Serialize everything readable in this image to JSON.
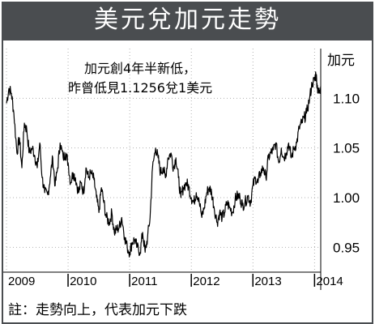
{
  "title": "美元兌加元走勢",
  "annotation_lines": [
    "加元創4年半新低，",
    "昨曾低見1.1256兌1美元"
  ],
  "footnote": "註：走勢向上，代表加元下跌",
  "chart_data": {
    "type": "line",
    "title": "美元兌加元走勢",
    "ylabel": "加元",
    "xlabel": "",
    "ylim": [
      0.925,
      1.15
    ],
    "xlim": [
      2009.0,
      2014.1
    ],
    "yticks": [
      0.95,
      1.0,
      1.05,
      1.1
    ],
    "ytick_labels": [
      "0.95",
      "1.00",
      "1.05",
      "1.10"
    ],
    "xticks": [
      {
        "x": 2009.0,
        "label": "2009"
      },
      {
        "x": 2010.0,
        "label": "2010"
      },
      {
        "x": 2011.0,
        "label": "2011"
      },
      {
        "x": 2012.0,
        "label": "2012"
      },
      {
        "x": 2013.0,
        "label": "2013"
      },
      {
        "x": 2014.0,
        "label": "2014"
      }
    ],
    "grid": true,
    "series": [
      {
        "name": "",
        "x": [
          2009.0,
          2009.04,
          2009.08,
          2009.12,
          2009.17,
          2009.21,
          2009.25,
          2009.29,
          2009.33,
          2009.37,
          2009.42,
          2009.46,
          2009.5,
          2009.54,
          2009.58,
          2009.62,
          2009.67,
          2009.71,
          2009.75,
          2009.79,
          2009.83,
          2009.87,
          2009.92,
          2009.96,
          2010.0,
          2010.04,
          2010.08,
          2010.12,
          2010.17,
          2010.21,
          2010.25,
          2010.29,
          2010.33,
          2010.37,
          2010.42,
          2010.46,
          2010.5,
          2010.54,
          2010.58,
          2010.62,
          2010.67,
          2010.71,
          2010.75,
          2010.79,
          2010.83,
          2010.87,
          2010.92,
          2010.96,
          2011.0,
          2011.04,
          2011.08,
          2011.12,
          2011.17,
          2011.21,
          2011.25,
          2011.29,
          2011.33,
          2011.37,
          2011.42,
          2011.46,
          2011.5,
          2011.54,
          2011.58,
          2011.62,
          2011.67,
          2011.71,
          2011.75,
          2011.79,
          2011.83,
          2011.87,
          2011.92,
          2011.96,
          2012.0,
          2012.04,
          2012.08,
          2012.12,
          2012.17,
          2012.21,
          2012.25,
          2012.29,
          2012.33,
          2012.37,
          2012.42,
          2012.46,
          2012.5,
          2012.54,
          2012.58,
          2012.62,
          2012.67,
          2012.71,
          2012.75,
          2012.79,
          2012.83,
          2012.87,
          2012.92,
          2012.96,
          2013.0,
          2013.04,
          2013.08,
          2013.12,
          2013.17,
          2013.21,
          2013.25,
          2013.29,
          2013.33,
          2013.37,
          2013.42,
          2013.46,
          2013.5,
          2013.54,
          2013.58,
          2013.62,
          2013.67,
          2013.71,
          2013.75,
          2013.79,
          2013.83,
          2013.87,
          2013.92,
          2013.96,
          2014.0,
          2014.02,
          2014.04,
          2014.06,
          2014.08,
          2014.1
        ],
        "values": [
          1.095,
          1.11,
          1.105,
          1.085,
          1.045,
          1.06,
          1.03,
          1.075,
          1.068,
          1.045,
          1.05,
          1.042,
          1.03,
          1.055,
          1.02,
          1.005,
          1.003,
          1.02,
          1.04,
          1.012,
          1.03,
          1.055,
          1.04,
          1.045,
          1.035,
          1.015,
          1.025,
          1.02,
          1.005,
          1.015,
          1.005,
          1.03,
          1.02,
          1.025,
          1.018,
          1.0,
          0.985,
          1.01,
          0.995,
          0.98,
          0.975,
          0.985,
          0.965,
          0.968,
          0.97,
          0.98,
          0.96,
          0.95,
          0.945,
          0.955,
          0.958,
          0.95,
          0.945,
          0.965,
          0.945,
          0.96,
          0.98,
          1.03,
          1.05,
          1.04,
          1.025,
          1.03,
          1.02,
          1.04,
          1.045,
          1.03,
          1.04,
          1.02,
          1.0,
          1.01,
          1.015,
          1.01,
          1.0,
          0.995,
          1.005,
          1.0,
          0.98,
          0.99,
          1.005,
          1.01,
          1.005,
          0.99,
          0.975,
          0.985,
          0.98,
          0.985,
          0.995,
          0.99,
          0.985,
          0.998,
          1.002,
          1.0,
          0.992,
          0.995,
          1.002,
          0.995,
          1.012,
          1.02,
          1.015,
          1.025,
          1.03,
          1.02,
          1.04,
          1.045,
          1.048,
          1.055,
          1.035,
          1.05,
          1.04,
          1.045,
          1.055,
          1.04,
          1.05,
          1.055,
          1.07,
          1.075,
          1.08,
          1.085,
          1.1,
          1.115,
          1.118,
          1.125,
          1.115,
          1.105,
          1.108,
          1.112
        ]
      }
    ],
    "legend": "none"
  },
  "colors": {
    "header_bg": "#4a4d50",
    "line": "#000000",
    "grid": "#b0b0b0"
  }
}
